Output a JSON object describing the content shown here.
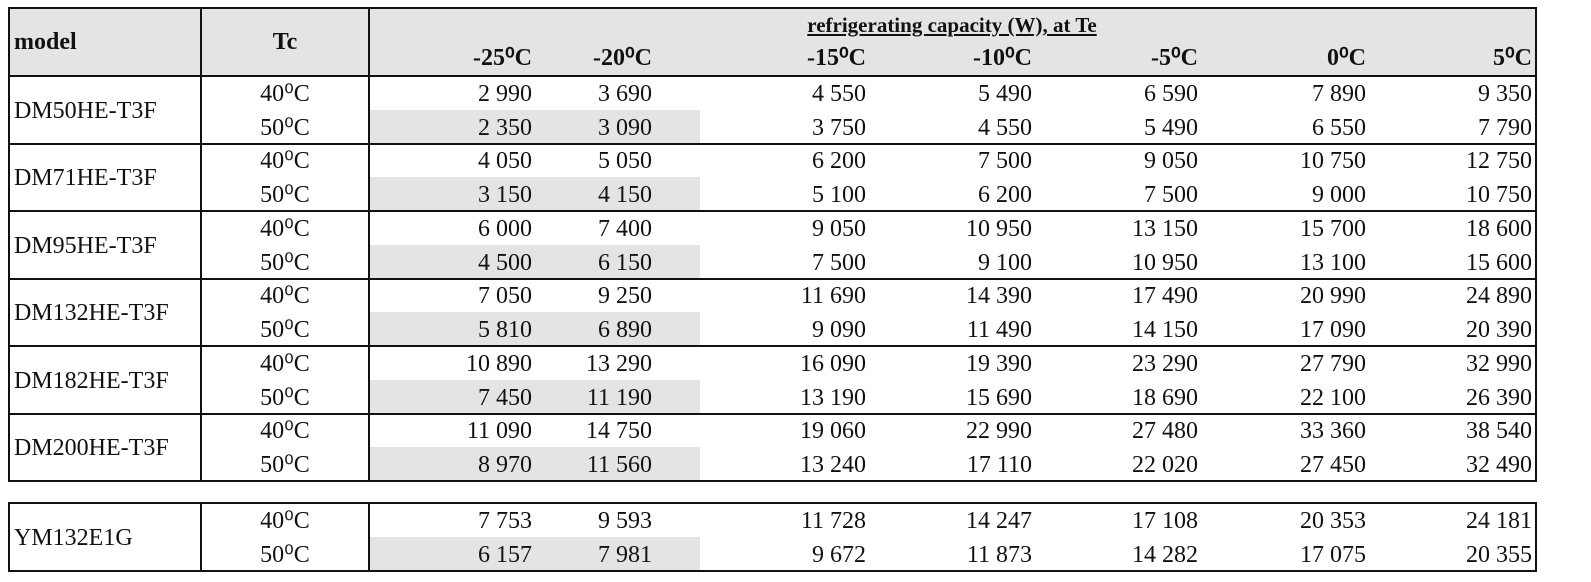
{
  "header": {
    "model": "model",
    "tc": "Tc",
    "group": "refrigerating capacity (W), at Te",
    "te": [
      "-25⁰C",
      "-20⁰C",
      "-15⁰C",
      "-10⁰C",
      "-5⁰C",
      "0⁰C",
      "5⁰C"
    ]
  },
  "table": {
    "groups": [
      {
        "model": "DM50HE-T3F",
        "rows": [
          {
            "tc": "40⁰C",
            "values": [
              "2 990",
              "3 690",
              "4 550",
              "5 490",
              "6 590",
              "7 890",
              "9 350"
            ]
          },
          {
            "tc": "50⁰C",
            "values": [
              "2 350",
              "3 090",
              "3 750",
              "4 550",
              "5 490",
              "6 550",
              "7 790"
            ]
          }
        ]
      },
      {
        "model": "DM71HE-T3F",
        "rows": [
          {
            "tc": "40⁰C",
            "values": [
              "4 050",
              "5 050",
              "6 200",
              "7 500",
              "9 050",
              "10 750",
              "12 750"
            ]
          },
          {
            "tc": "50⁰C",
            "values": [
              "3 150",
              "4 150",
              "5 100",
              "6 200",
              "7 500",
              "9 000",
              "10 750"
            ]
          }
        ]
      },
      {
        "model": "DM95HE-T3F",
        "rows": [
          {
            "tc": "40⁰C",
            "values": [
              "6 000",
              "7 400",
              "9 050",
              "10 950",
              "13 150",
              "15 700",
              "18 600"
            ]
          },
          {
            "tc": "50⁰C",
            "values": [
              "4 500",
              "6 150",
              "7 500",
              "9 100",
              "10 950",
              "13 100",
              "15 600"
            ]
          }
        ]
      },
      {
        "model": "DM132HE-T3F",
        "rows": [
          {
            "tc": "40⁰C",
            "values": [
              "7 050",
              "9 250",
              "11 690",
              "14 390",
              "17 490",
              "20 990",
              "24 890"
            ]
          },
          {
            "tc": "50⁰C",
            "values": [
              "5 810",
              "6 890",
              "9 090",
              "11 490",
              "14 150",
              "17 090",
              "20 390"
            ]
          }
        ]
      },
      {
        "model": "DM182HE-T3F",
        "rows": [
          {
            "tc": "40⁰C",
            "values": [
              "10 890",
              "13 290",
              "16 090",
              "19 390",
              "23 290",
              "27 790",
              "32 990"
            ]
          },
          {
            "tc": "50⁰C",
            "values": [
              "7 450",
              "11 190",
              "13 190",
              "15 690",
              "18 690",
              "22 100",
              "26 390"
            ]
          }
        ]
      },
      {
        "model": "DM200HE-T3F",
        "rows": [
          {
            "tc": "40⁰C",
            "values": [
              "11 090",
              "14 750",
              "19 060",
              "22 990",
              "27 480",
              "33 360",
              "38 540"
            ]
          },
          {
            "tc": "50⁰C",
            "values": [
              "8 970",
              "11 560",
              "13 240",
              "17 110",
              "22 020",
              "27 450",
              "32 490"
            ]
          }
        ]
      }
    ]
  },
  "table2": {
    "groups": [
      {
        "model": "YM132E1G",
        "rows": [
          {
            "tc": "40⁰C",
            "values": [
              "7 753",
              "9 593",
              "11 728",
              "14 247",
              "17 108",
              "20 353",
              "24 181"
            ]
          },
          {
            "tc": "50⁰C",
            "values": [
              "6 157",
              "7 981",
              "9 672",
              "11 873",
              "14 282",
              "17 075",
              "20 355"
            ]
          }
        ]
      }
    ]
  }
}
